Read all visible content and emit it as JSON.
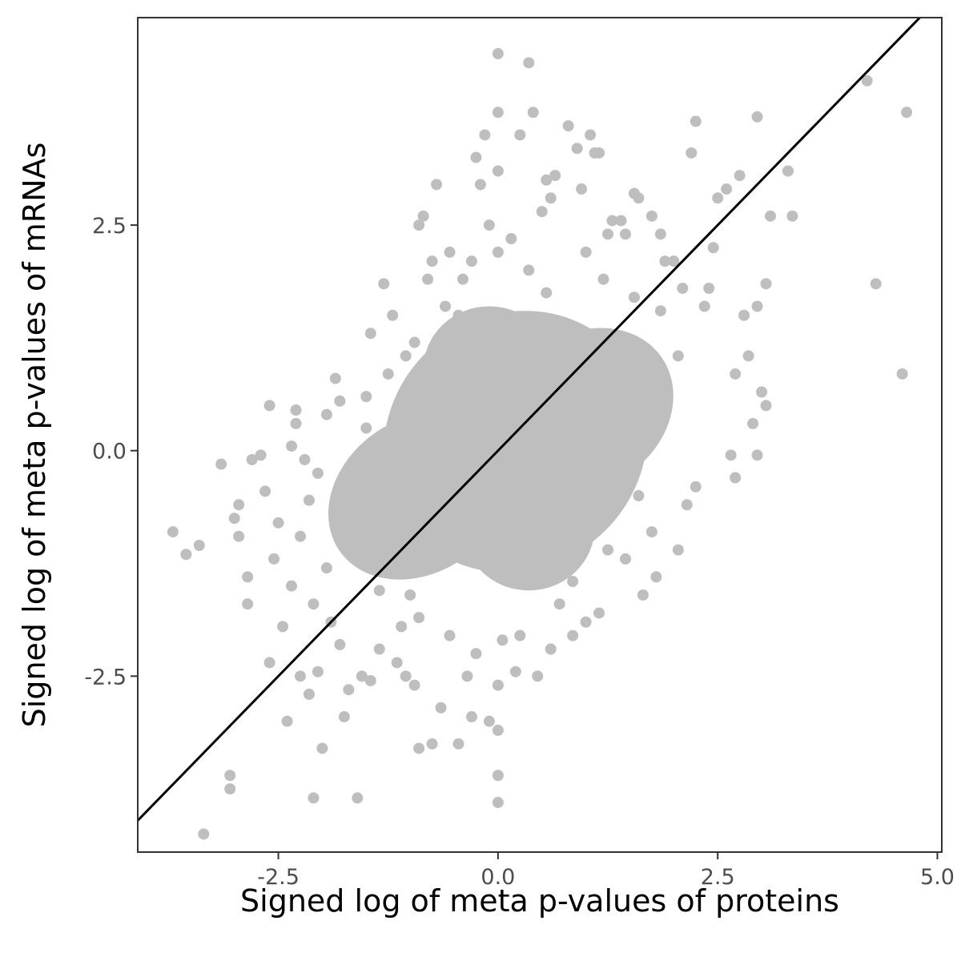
{
  "chart_data": {
    "type": "scatter",
    "xlabel": "Signed log of meta p-values of proteins",
    "ylabel": "Signed log of meta p-values of mRNAs",
    "xlim": [
      -4.1,
      5.05
    ],
    "ylim": [
      -4.45,
      4.8
    ],
    "x_ticks": [
      {
        "value": -2.5,
        "label": "-2.5"
      },
      {
        "value": 0.0,
        "label": "0.0"
      },
      {
        "value": 2.5,
        "label": "2.5"
      },
      {
        "value": 5.0,
        "label": "5.0"
      }
    ],
    "y_ticks": [
      {
        "value": -2.5,
        "label": "-2.5"
      },
      {
        "value": 0.0,
        "label": "0.0"
      },
      {
        "value": 2.5,
        "label": "2.5"
      }
    ],
    "grid": false,
    "reference_line": {
      "slope": 1,
      "intercept": 0
    },
    "point_color": "#bebebe",
    "line_color": "#000000",
    "points": [
      [
        -3.7,
        -0.9
      ],
      [
        -3.55,
        -1.15
      ],
      [
        -3.4,
        -1.05
      ],
      [
        -3.35,
        -4.25
      ],
      [
        -3.15,
        -0.15
      ],
      [
        -3.05,
        -3.6
      ],
      [
        -3.05,
        -3.75
      ],
      [
        -3.0,
        -0.75
      ],
      [
        -2.95,
        -0.6
      ],
      [
        -2.95,
        -0.95
      ],
      [
        -2.85,
        -1.7
      ],
      [
        -2.85,
        -1.4
      ],
      [
        -2.8,
        -0.1
      ],
      [
        -2.7,
        -0.05
      ],
      [
        -2.65,
        -0.45
      ],
      [
        -2.6,
        0.5
      ],
      [
        -2.6,
        -2.35
      ],
      [
        -2.55,
        -1.2
      ],
      [
        -2.5,
        -0.8
      ],
      [
        -2.45,
        -1.95
      ],
      [
        -2.4,
        -3.0
      ],
      [
        -2.35,
        -1.5
      ],
      [
        -2.3,
        0.45
      ],
      [
        -2.3,
        0.3
      ],
      [
        -2.25,
        -2.5
      ],
      [
        -2.2,
        -0.1
      ],
      [
        -2.15,
        -2.7
      ],
      [
        -2.1,
        -3.85
      ],
      [
        -2.1,
        -1.7
      ],
      [
        -2.05,
        -2.45
      ],
      [
        -2.0,
        -3.3
      ],
      [
        -1.95,
        0.4
      ],
      [
        -1.9,
        -1.9
      ],
      [
        -1.85,
        0.8
      ],
      [
        -1.8,
        -2.15
      ],
      [
        -1.75,
        -2.95
      ],
      [
        -1.7,
        -2.65
      ],
      [
        -1.6,
        -3.85
      ],
      [
        -1.55,
        -2.5
      ],
      [
        -1.5,
        0.6
      ],
      [
        -1.45,
        -2.55
      ],
      [
        -1.45,
        1.3
      ],
      [
        -1.35,
        -2.2
      ],
      [
        -1.3,
        1.85
      ],
      [
        -1.25,
        0.85
      ],
      [
        -1.2,
        1.5
      ],
      [
        -1.15,
        -2.35
      ],
      [
        -1.05,
        -2.5
      ],
      [
        -1.05,
        1.05
      ],
      [
        -1.0,
        -1.6
      ],
      [
        -0.95,
        -2.6
      ],
      [
        -0.9,
        -3.3
      ],
      [
        -0.9,
        2.5
      ],
      [
        -0.85,
        2.6
      ],
      [
        -0.8,
        1.9
      ],
      [
        -0.75,
        -3.25
      ],
      [
        -0.75,
        2.1
      ],
      [
        -0.7,
        2.95
      ],
      [
        -0.65,
        -2.85
      ],
      [
        -0.55,
        2.2
      ],
      [
        -0.45,
        -3.25
      ],
      [
        -0.45,
        1.5
      ],
      [
        -0.35,
        -2.5
      ],
      [
        -0.3,
        -2.95
      ],
      [
        -0.3,
        2.1
      ],
      [
        -0.25,
        3.25
      ],
      [
        -0.2,
        2.95
      ],
      [
        -0.15,
        3.5
      ],
      [
        -0.1,
        -3.0
      ],
      [
        -0.1,
        2.5
      ],
      [
        -0.05,
        -0.5
      ],
      [
        0.0,
        4.4
      ],
      [
        0.0,
        3.75
      ],
      [
        0.0,
        3.1
      ],
      [
        0.0,
        2.2
      ],
      [
        0.0,
        -2.6
      ],
      [
        0.0,
        -3.1
      ],
      [
        0.0,
        -3.6
      ],
      [
        0.0,
        -3.9
      ],
      [
        0.05,
        -2.1
      ],
      [
        0.15,
        2.35
      ],
      [
        0.2,
        -2.45
      ],
      [
        0.25,
        3.5
      ],
      [
        0.35,
        4.3
      ],
      [
        0.4,
        3.75
      ],
      [
        0.45,
        -2.5
      ],
      [
        0.5,
        2.65
      ],
      [
        0.55,
        3.0
      ],
      [
        0.6,
        2.8
      ],
      [
        0.65,
        3.05
      ],
      [
        0.7,
        -1.7
      ],
      [
        0.8,
        3.6
      ],
      [
        0.85,
        -2.05
      ],
      [
        0.9,
        3.35
      ],
      [
        0.95,
        2.9
      ],
      [
        1.0,
        -1.9
      ],
      [
        1.05,
        3.5
      ],
      [
        1.1,
        3.3
      ],
      [
        1.15,
        3.3
      ],
      [
        1.25,
        2.4
      ],
      [
        1.3,
        2.55
      ],
      [
        1.4,
        2.55
      ],
      [
        1.45,
        2.4
      ],
      [
        1.55,
        2.85
      ],
      [
        1.6,
        2.8
      ],
      [
        1.6,
        -0.5
      ],
      [
        1.65,
        -1.6
      ],
      [
        1.75,
        2.6
      ],
      [
        1.8,
        -1.4
      ],
      [
        1.85,
        2.4
      ],
      [
        1.9,
        2.1
      ],
      [
        2.0,
        2.1
      ],
      [
        2.05,
        -1.1
      ],
      [
        2.1,
        1.8
      ],
      [
        2.15,
        -0.6
      ],
      [
        2.2,
        3.3
      ],
      [
        2.25,
        3.65
      ],
      [
        2.25,
        -0.4
      ],
      [
        2.35,
        1.6
      ],
      [
        2.4,
        1.8
      ],
      [
        2.45,
        2.25
      ],
      [
        2.5,
        2.8
      ],
      [
        2.6,
        2.9
      ],
      [
        2.65,
        -0.05
      ],
      [
        2.7,
        0.85
      ],
      [
        2.75,
        3.05
      ],
      [
        2.8,
        1.5
      ],
      [
        2.85,
        1.05
      ],
      [
        2.9,
        0.3
      ],
      [
        2.95,
        1.6
      ],
      [
        2.95,
        3.7
      ],
      [
        3.0,
        0.65
      ],
      [
        3.05,
        0.5
      ],
      [
        3.05,
        1.85
      ],
      [
        3.1,
        2.6
      ],
      [
        3.3,
        3.1
      ],
      [
        3.35,
        2.6
      ],
      [
        4.2,
        4.1
      ],
      [
        4.3,
        1.85
      ],
      [
        4.6,
        0.85
      ],
      [
        4.65,
        3.75
      ],
      [
        2.95,
        -0.05
      ],
      [
        2.7,
        -0.3
      ],
      [
        1.15,
        -1.8
      ],
      [
        1.3,
        -0.15
      ],
      [
        -1.8,
        0.55
      ],
      [
        -2.35,
        0.05
      ],
      [
        -1.65,
        -1.1
      ],
      [
        -2.15,
        -0.55
      ],
      [
        -1.95,
        -1.3
      ],
      [
        -1.35,
        -1.55
      ],
      [
        -2.05,
        -0.25
      ],
      [
        -2.25,
        -0.95
      ],
      [
        -1.5,
        0.25
      ],
      [
        -1.2,
        -0.4
      ],
      [
        -0.6,
        1.6
      ],
      [
        -0.4,
        1.9
      ],
      [
        -0.95,
        1.2
      ],
      [
        0.35,
        2.0
      ],
      [
        0.55,
        1.75
      ],
      [
        0.25,
        -2.05
      ],
      [
        -0.25,
        -2.25
      ],
      [
        0.6,
        -2.2
      ],
      [
        1.0,
        2.2
      ],
      [
        1.2,
        1.9
      ],
      [
        1.55,
        1.7
      ],
      [
        1.85,
        1.55
      ],
      [
        2.05,
        1.05
      ],
      [
        1.75,
        -0.9
      ],
      [
        1.45,
        -1.2
      ],
      [
        -0.9,
        -1.85
      ],
      [
        -0.55,
        -2.05
      ],
      [
        -1.1,
        -1.95
      ],
      [
        0.85,
        -1.45
      ],
      [
        1.25,
        -1.1
      ]
    ]
  }
}
